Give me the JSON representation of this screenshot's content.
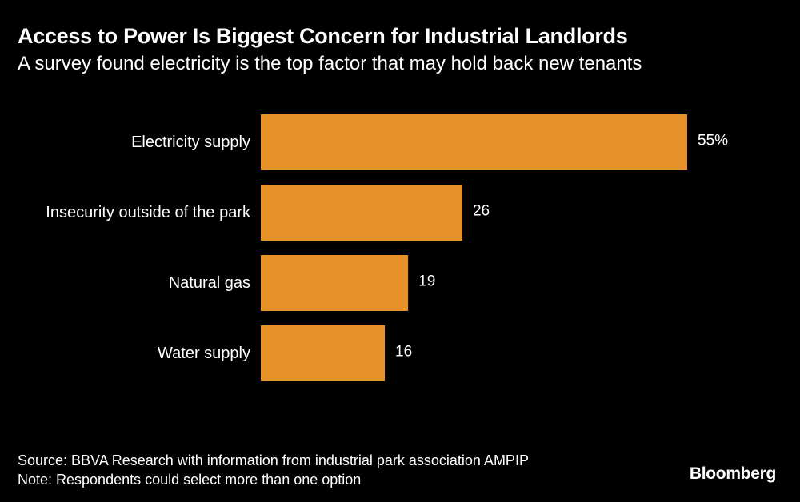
{
  "header": {
    "title": "Access to Power Is Biggest Concern for Industrial Landlords",
    "subtitle": "A survey found electricity is the top factor that may hold back new tenants"
  },
  "chart_data": {
    "type": "bar",
    "orientation": "horizontal",
    "title": "Access to Power Is Biggest Concern for Industrial Landlords",
    "subtitle": "A survey found electricity is the top factor that may hold back new tenants",
    "categories": [
      "Electricity supply",
      "Insecurity outside of the park",
      "Natural gas",
      "Water supply"
    ],
    "values": [
      55,
      26,
      19,
      16
    ],
    "value_labels": [
      "55%",
      "26",
      "19",
      "16"
    ],
    "unit": "%",
    "xlabel": "",
    "ylabel": "",
    "xlim": [
      0,
      55
    ],
    "grid": false,
    "legend": "none",
    "colors": {
      "bar": "#E69228",
      "background": "#000000",
      "text": "#FFFFFF"
    }
  },
  "footer": {
    "source": "Source: BBVA Research with information from industrial park association AMPIP",
    "note": "Note: Respondents could select more than one option",
    "brand": "Bloomberg"
  }
}
